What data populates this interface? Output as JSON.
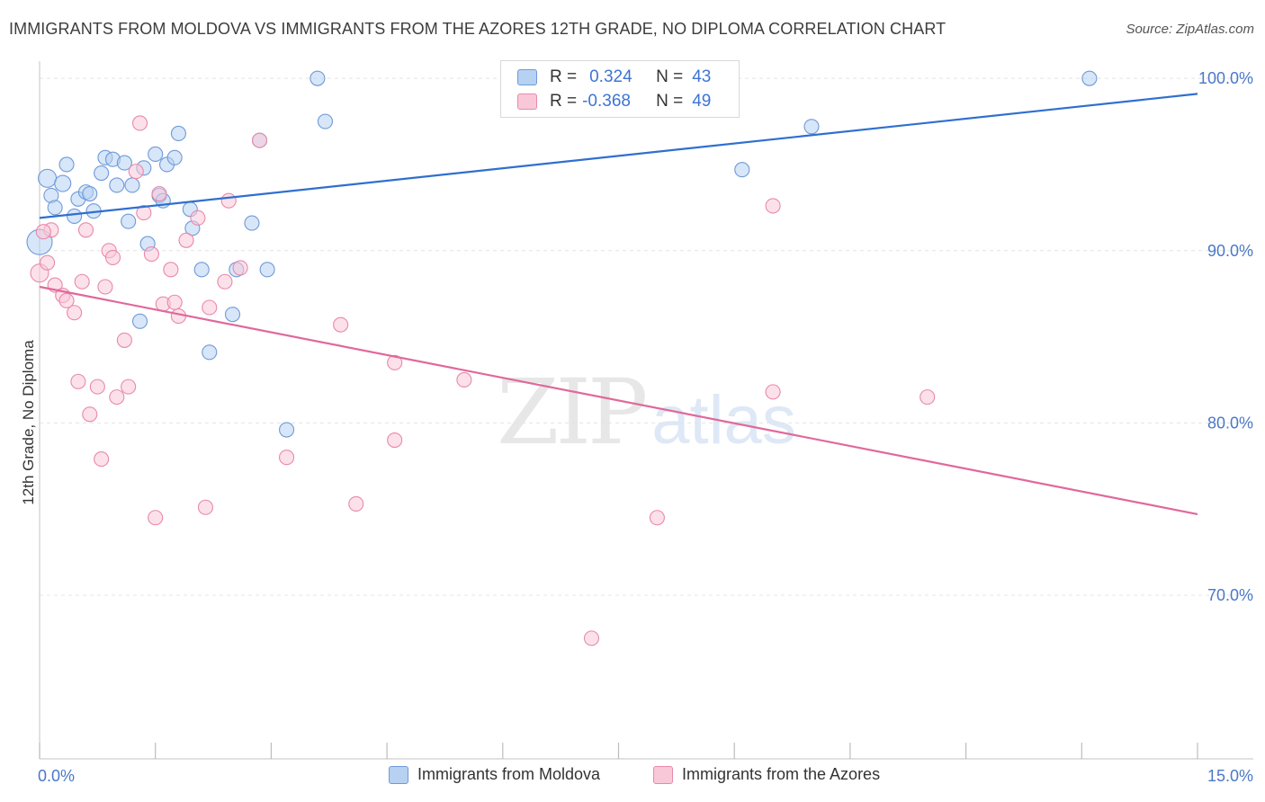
{
  "title": "IMMIGRANTS FROM MOLDOVA VS IMMIGRANTS FROM THE AZORES 12TH GRADE, NO DIPLOMA CORRELATION CHART",
  "source": "Source: ZipAtlas.com",
  "watermark": {
    "zip": "ZIP",
    "atlas": "atlas"
  },
  "stats": {
    "moldova": {
      "r_label": "R =",
      "r_value": "0.324",
      "n_label": "N =",
      "n_value": "43"
    },
    "azores": {
      "r_label": "R =",
      "r_value": "-0.368",
      "n_label": "N =",
      "n_value": "49"
    }
  },
  "legend": {
    "moldova": "Immigrants from Moldova",
    "azores": "Immigrants from the Azores"
  },
  "colors": {
    "moldova_fill": "#b7d1f3",
    "moldova_stroke": "#6f9ad8",
    "moldova_line": "#2f6fd0",
    "azores_fill": "#f9c8d8",
    "azores_stroke": "#e889a8",
    "azores_line": "#e0689a",
    "tick_label": "#4a78c8",
    "grid": "#e4e4e4"
  },
  "chart_data": {
    "type": "scatter",
    "ylabel": "12th Grade, No Diploma",
    "xlim": [
      0,
      15
    ],
    "ylim": [
      60.5,
      101
    ],
    "x_tick_labels": [
      {
        "x": 0,
        "label": "0.0%"
      },
      {
        "x": 15,
        "label": "15.0%"
      }
    ],
    "x_minor_ticks": [
      0,
      1.5,
      3,
      4.5,
      6,
      7.5,
      9,
      10.5,
      12,
      13.5,
      15
    ],
    "y_ticks": [
      {
        "y": 100,
        "label": "100.0%"
      },
      {
        "y": 90,
        "label": "90.0%"
      },
      {
        "y": 80,
        "label": "80.0%"
      },
      {
        "y": 70,
        "label": "70.0%"
      }
    ],
    "grid": true,
    "series": [
      {
        "name": "Immigrants from Moldova",
        "key": "moldova",
        "trend": {
          "x": [
            0,
            15
          ],
          "y": [
            91.9,
            99.1
          ]
        },
        "points": [
          [
            0.0,
            90.5,
            14
          ],
          [
            0.1,
            94.2,
            10
          ],
          [
            0.15,
            93.2,
            8
          ],
          [
            0.2,
            92.5,
            8
          ],
          [
            0.3,
            93.9,
            9
          ],
          [
            0.35,
            95.0,
            8
          ],
          [
            0.45,
            92.0,
            8
          ],
          [
            0.5,
            93.0,
            8
          ],
          [
            0.6,
            93.4,
            8
          ],
          [
            0.65,
            93.3,
            8
          ],
          [
            0.7,
            92.3,
            8
          ],
          [
            0.8,
            94.5,
            8
          ],
          [
            0.85,
            95.4,
            8
          ],
          [
            0.95,
            95.3,
            8
          ],
          [
            1.0,
            93.8,
            8
          ],
          [
            1.1,
            95.1,
            8
          ],
          [
            1.15,
            91.7,
            8
          ],
          [
            1.2,
            93.8,
            8
          ],
          [
            1.3,
            85.9,
            8
          ],
          [
            1.35,
            94.8,
            8
          ],
          [
            1.4,
            90.4,
            8
          ],
          [
            1.5,
            95.6,
            8
          ],
          [
            1.55,
            93.2,
            8
          ],
          [
            1.6,
            92.9,
            8
          ],
          [
            1.65,
            95.0,
            8
          ],
          [
            1.75,
            95.4,
            8
          ],
          [
            1.8,
            96.8,
            8
          ],
          [
            1.95,
            92.4,
            8
          ],
          [
            1.98,
            91.3,
            8
          ],
          [
            2.1,
            88.9,
            8
          ],
          [
            2.2,
            84.1,
            8
          ],
          [
            2.5,
            86.3,
            8
          ],
          [
            2.55,
            88.9,
            8
          ],
          [
            2.75,
            91.6,
            8
          ],
          [
            2.85,
            96.4,
            8
          ],
          [
            2.95,
            88.9,
            8
          ],
          [
            3.2,
            79.6,
            8
          ],
          [
            3.6,
            100.0,
            8
          ],
          [
            3.7,
            97.5,
            8
          ],
          [
            8.0,
            100.0,
            8
          ],
          [
            9.1,
            94.7,
            8
          ],
          [
            10.0,
            97.2,
            8
          ],
          [
            13.6,
            100.0,
            8
          ]
        ]
      },
      {
        "name": "Immigrants from the Azores",
        "key": "azores",
        "trend": {
          "x": [
            0,
            15
          ],
          "y": [
            87.9,
            74.7
          ]
        },
        "points": [
          [
            0.0,
            88.7,
            10
          ],
          [
            0.1,
            89.3,
            8
          ],
          [
            0.15,
            91.2,
            8
          ],
          [
            0.2,
            88.0,
            8
          ],
          [
            0.3,
            87.4,
            8
          ],
          [
            0.35,
            87.1,
            8
          ],
          [
            0.45,
            86.4,
            8
          ],
          [
            0.5,
            82.4,
            8
          ],
          [
            0.55,
            88.2,
            8
          ],
          [
            0.6,
            91.2,
            8
          ],
          [
            0.65,
            80.5,
            8
          ],
          [
            0.75,
            82.1,
            8
          ],
          [
            0.8,
            77.9,
            8
          ],
          [
            0.85,
            87.9,
            8
          ],
          [
            0.9,
            90.0,
            8
          ],
          [
            0.95,
            89.6,
            8
          ],
          [
            1.0,
            81.5,
            8
          ],
          [
            1.1,
            84.8,
            8
          ],
          [
            1.15,
            82.1,
            8
          ],
          [
            1.25,
            94.6,
            8
          ],
          [
            1.3,
            97.4,
            8
          ],
          [
            1.35,
            92.2,
            8
          ],
          [
            1.45,
            89.8,
            8
          ],
          [
            1.5,
            74.5,
            8
          ],
          [
            1.55,
            93.3,
            8
          ],
          [
            1.6,
            86.9,
            8
          ],
          [
            1.7,
            88.9,
            8
          ],
          [
            1.75,
            87.0,
            8
          ],
          [
            1.8,
            86.2,
            8
          ],
          [
            1.9,
            90.6,
            8
          ],
          [
            2.05,
            91.9,
            8
          ],
          [
            2.15,
            75.1,
            8
          ],
          [
            2.2,
            86.7,
            8
          ],
          [
            2.4,
            88.2,
            8
          ],
          [
            2.45,
            92.9,
            8
          ],
          [
            2.6,
            89.0,
            8
          ],
          [
            2.85,
            96.4,
            8
          ],
          [
            3.2,
            78.0,
            8
          ],
          [
            3.9,
            85.7,
            8
          ],
          [
            4.1,
            75.3,
            8
          ],
          [
            4.6,
            79.0,
            8
          ],
          [
            4.6,
            83.5,
            8
          ],
          [
            5.5,
            82.5,
            8
          ],
          [
            7.15,
            67.5,
            8
          ],
          [
            8.0,
            74.5,
            8
          ],
          [
            9.5,
            92.6,
            8
          ],
          [
            9.5,
            81.8,
            8
          ],
          [
            11.5,
            81.5,
            8
          ],
          [
            0.05,
            91.1,
            8
          ]
        ]
      }
    ]
  }
}
